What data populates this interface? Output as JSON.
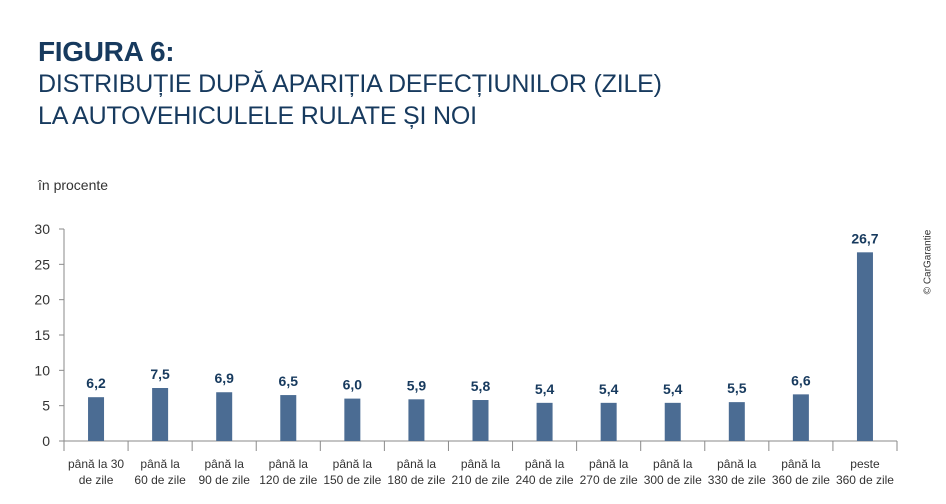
{
  "figure": {
    "label": "FIGURA 6:",
    "title_line1": "DISTRIBUȚIE DUPĂ APARIȚIA DEFECȚIUNILOR (ZILE)",
    "title_line2": "LA AUTOVEHICULELE RULATE ȘI NOI"
  },
  "unit_label": "în procente",
  "source_credit": "© CarGarantie",
  "colors": {
    "bar": "#4b6c93",
    "title": "#173a5e",
    "value_label": "#173a5e"
  },
  "chart_data": {
    "type": "bar",
    "categories": [
      [
        "până la 30",
        "de zile"
      ],
      [
        "până la",
        "60 de zile"
      ],
      [
        "până la",
        "90 de zile"
      ],
      [
        "până la",
        "120 de zile"
      ],
      [
        "până la",
        "150 de zile"
      ],
      [
        "până la",
        "180 de zile"
      ],
      [
        "până la",
        "210 de zile"
      ],
      [
        "până la",
        "240 de zile"
      ],
      [
        "până la",
        "270 de zile"
      ],
      [
        "până la",
        "300 de zile"
      ],
      [
        "până la",
        "330 de zile"
      ],
      [
        "până la",
        "360 de zile"
      ],
      [
        "peste",
        "360 de zile"
      ]
    ],
    "values": [
      6.2,
      7.5,
      6.9,
      6.5,
      6.0,
      5.9,
      5.8,
      5.4,
      5.4,
      5.4,
      5.5,
      6.6,
      26.7
    ],
    "value_labels": [
      "6,2",
      "7,5",
      "6,9",
      "6,5",
      "6,0",
      "5,9",
      "5,8",
      "5,4",
      "5,4",
      "5,4",
      "5,5",
      "6,6",
      "26,7"
    ],
    "yticks": [
      0,
      5,
      10,
      15,
      20,
      25,
      30
    ],
    "ylim": [
      0,
      30
    ],
    "grid": false,
    "legend": "none"
  }
}
